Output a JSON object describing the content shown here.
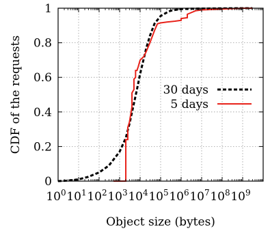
{
  "chart_data": {
    "type": "line",
    "xlabel": "Object size (bytes)",
    "ylabel": "CDF of the requests",
    "x_scale": "log10",
    "xlim": [
      1,
      10000000000
    ],
    "ylim": [
      0,
      1
    ],
    "x_ticks": [
      {
        "base": "10",
        "exp": "0",
        "value": 1
      },
      {
        "base": "10",
        "exp": "1",
        "value": 10
      },
      {
        "base": "10",
        "exp": "2",
        "value": 100
      },
      {
        "base": "10",
        "exp": "3",
        "value": 1000
      },
      {
        "base": "10",
        "exp": "4",
        "value": 10000
      },
      {
        "base": "10",
        "exp": "5",
        "value": 100000
      },
      {
        "base": "10",
        "exp": "6",
        "value": 1000000
      },
      {
        "base": "10",
        "exp": "7",
        "value": 10000000
      },
      {
        "base": "10",
        "exp": "8",
        "value": 100000000
      },
      {
        "base": "10",
        "exp": "9",
        "value": 1000000000
      }
    ],
    "y_ticks": [
      "0",
      "0.2",
      "0.4",
      "0.6",
      "0.8",
      "1"
    ],
    "y_tick_values": [
      0,
      0.2,
      0.4,
      0.6,
      0.8,
      1
    ],
    "grid": true,
    "legend_position": "center-right",
    "series": [
      {
        "name": "30 days",
        "color": "#000000",
        "style": "dashed",
        "x": [
          1,
          3,
          10,
          30,
          100,
          300,
          1000,
          2000,
          3000,
          5000,
          7000,
          10000,
          20000,
          30000,
          50000,
          100000,
          200000,
          300000,
          500000,
          1000000,
          3000000,
          10000000,
          100000000,
          1000000000,
          3000000000
        ],
        "y": [
          0,
          0.003,
          0.01,
          0.025,
          0.05,
          0.09,
          0.17,
          0.25,
          0.33,
          0.45,
          0.53,
          0.62,
          0.77,
          0.84,
          0.91,
          0.955,
          0.975,
          0.985,
          0.99,
          0.995,
          0.997,
          0.998,
          0.999,
          1,
          1
        ]
      },
      {
        "name": "5 days",
        "color": "#e8221a",
        "style": "solid",
        "x": [
          500,
          2000,
          2000,
          2500,
          2500,
          3000,
          4000,
          4000,
          5000,
          5000,
          6000,
          6000,
          7000,
          8000,
          10000,
          15000,
          20000,
          30000,
          50000,
          70000,
          100000,
          200000,
          500000,
          1000000,
          1000000,
          2000000,
          2000000,
          5000000,
          10000000,
          100000000,
          1000000000,
          3000000000
        ],
        "y": [
          0,
          0,
          0.24,
          0.24,
          0.31,
          0.34,
          0.43,
          0.51,
          0.53,
          0.59,
          0.6,
          0.64,
          0.64,
          0.66,
          0.7,
          0.72,
          0.75,
          0.8,
          0.87,
          0.91,
          0.915,
          0.92,
          0.925,
          0.93,
          0.94,
          0.945,
          0.965,
          0.985,
          0.99,
          0.995,
          1,
          1
        ]
      }
    ]
  }
}
